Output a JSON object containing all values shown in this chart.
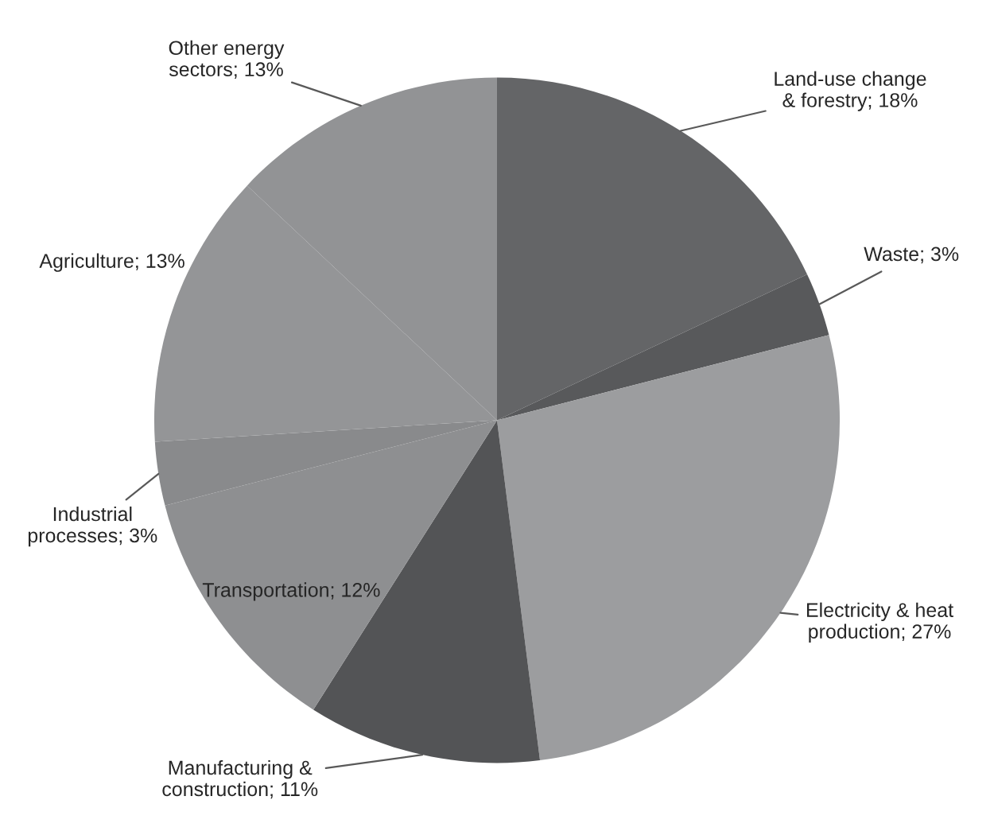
{
  "chart_data": {
    "type": "pie",
    "categories": [
      "Land-use change & forestry",
      "Waste",
      "Electricity & heat production",
      "Manufacturing & construction",
      "Transportation",
      "Industrial processes",
      "Agriculture",
      "Other energy sectors"
    ],
    "values": [
      18,
      3,
      27,
      11,
      12,
      3,
      13,
      13
    ],
    "value_labels": [
      "18%",
      "3%",
      "27%",
      "11%",
      "12%",
      "3%",
      "13%",
      "13%"
    ],
    "colors": [
      "#646567",
      "#58595b",
      "#9c9d9f",
      "#535456",
      "#8e8f91",
      "#898a8c",
      "#949597",
      "#929395"
    ]
  }
}
